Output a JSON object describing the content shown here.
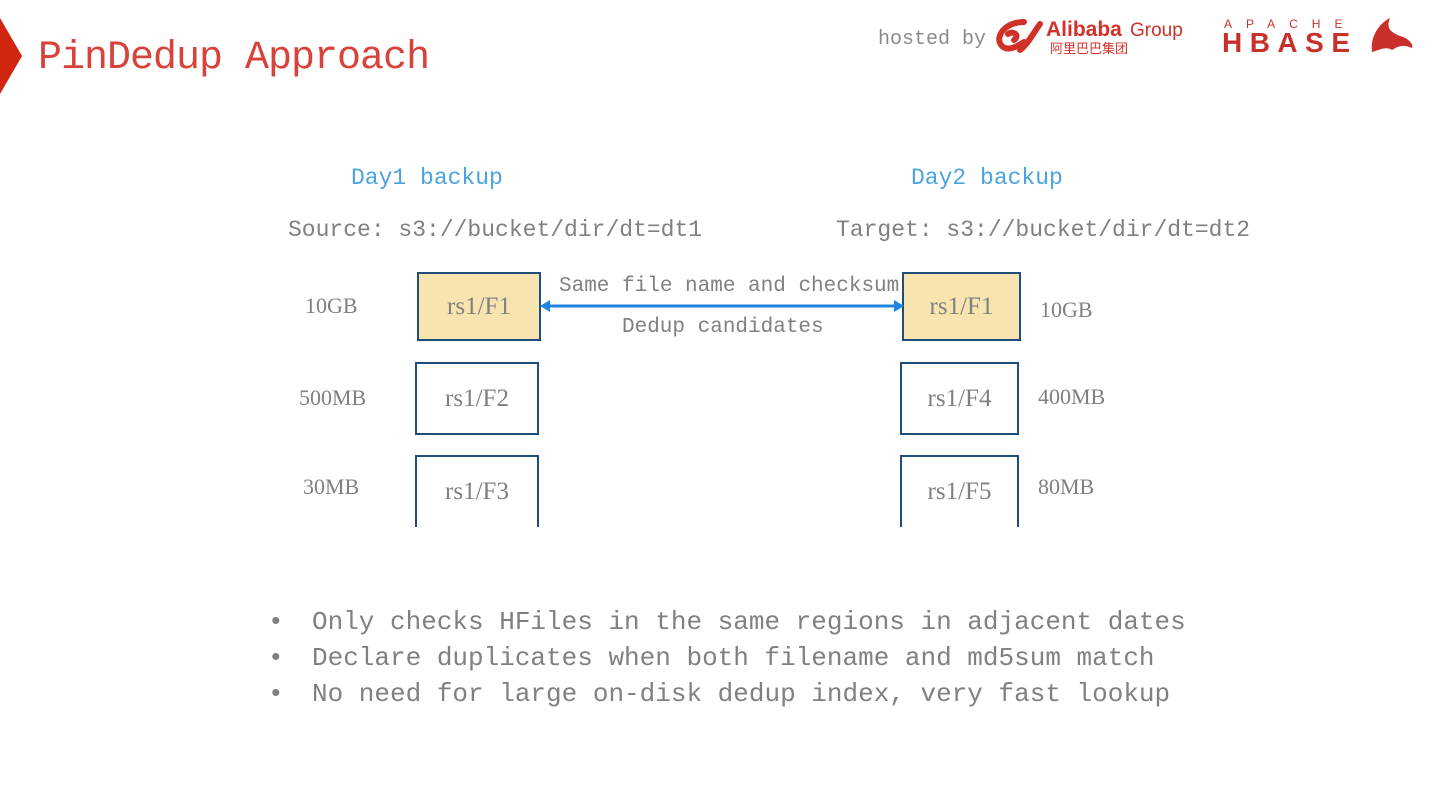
{
  "header": {
    "title": "PinDedup Approach",
    "hosted_by": "hosted by",
    "logos": [
      "Alibaba Group",
      "阿里巴巴集团",
      "APACHE",
      "HBASE"
    ],
    "accent_color": "#d9413b"
  },
  "diagram": {
    "left": {
      "heading": "Day1 backup",
      "path": "Source: s3://bucket/dir/dt=dt1",
      "files": [
        {
          "name": "rs1/F1",
          "size": "10GB"
        },
        {
          "name": "rs1/F2",
          "size": "500MB"
        },
        {
          "name": "rs1/F3",
          "size": "30MB"
        }
      ]
    },
    "right": {
      "heading": "Day2 backup",
      "path": "Target: s3://bucket/dir/dt=dt2",
      "files": [
        {
          "name": "rs1/F1",
          "size": "10GB"
        },
        {
          "name": "rs1/F4",
          "size": "400MB"
        },
        {
          "name": "rs1/F5",
          "size": "80MB"
        }
      ]
    },
    "arrow_label_top": "Same file name and checksum",
    "arrow_label_bottom": "Dedup candidates",
    "highlight_color": "#f7e4ae",
    "arrow_color": "#1f86e0"
  },
  "bullets": [
    "Only checks HFiles in the same regions in adjacent dates",
    "Declare duplicates when both filename and md5sum match",
    "No need for large on-disk dedup index, very fast lookup"
  ]
}
